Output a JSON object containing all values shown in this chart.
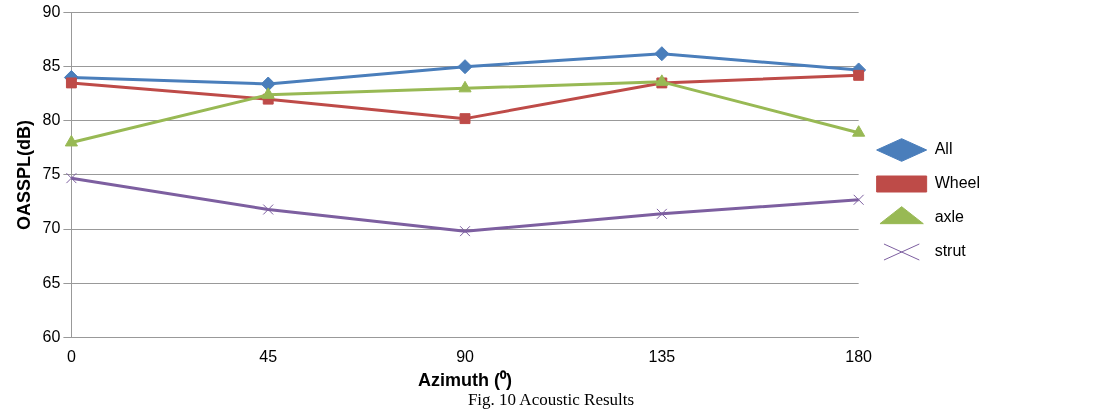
{
  "chart_data": {
    "type": "line",
    "xlabel": "Azimuth (⁰)",
    "ylabel": "OASSPL(dB)",
    "categories": [
      "0",
      "45",
      "90",
      "135",
      "180"
    ],
    "series": [
      {
        "name": "All",
        "color": "#4a7ebb",
        "marker": "diamond",
        "values": [
          84.0,
          83.4,
          85.0,
          86.2,
          84.7
        ]
      },
      {
        "name": "Wheel",
        "color": "#be4b48",
        "marker": "square",
        "values": [
          83.5,
          82.0,
          80.2,
          83.5,
          84.2
        ]
      },
      {
        "name": "axle",
        "color": "#98b954",
        "marker": "triangle",
        "values": [
          78.0,
          82.4,
          83.0,
          83.6,
          78.9
        ]
      },
      {
        "name": "strut",
        "color": "#7d5fa0",
        "marker": "cross",
        "values": [
          74.7,
          71.8,
          69.8,
          71.4,
          72.7
        ]
      }
    ],
    "ylim": [
      60,
      90
    ],
    "yticks": [
      60,
      65,
      70,
      75,
      80,
      85,
      90
    ],
    "grid": "y",
    "legend": "right",
    "line_style": "solid",
    "annotations": [
      "Fig. 10 Acoustic Results"
    ]
  }
}
